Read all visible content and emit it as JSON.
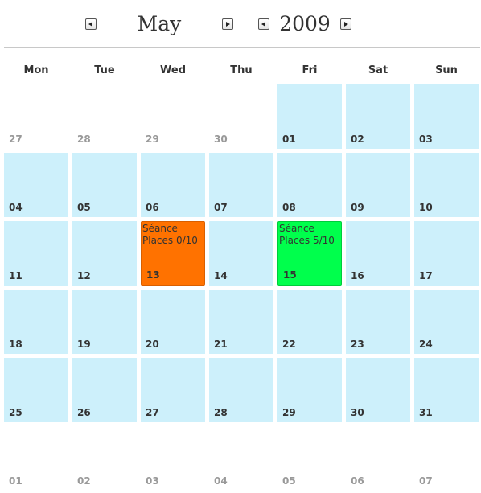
{
  "header": {
    "month": "May",
    "year": "2009"
  },
  "weekdays": [
    "Mon",
    "Tue",
    "Wed",
    "Thu",
    "Fri",
    "Sat",
    "Sun"
  ],
  "weeks": [
    [
      {
        "day": "27",
        "in_month": false
      },
      {
        "day": "28",
        "in_month": false
      },
      {
        "day": "29",
        "in_month": false
      },
      {
        "day": "30",
        "in_month": false
      },
      {
        "day": "01",
        "in_month": true
      },
      {
        "day": "02",
        "in_month": true
      },
      {
        "day": "03",
        "in_month": true
      }
    ],
    [
      {
        "day": "04",
        "in_month": true
      },
      {
        "day": "05",
        "in_month": true
      },
      {
        "day": "06",
        "in_month": true
      },
      {
        "day": "07",
        "in_month": true
      },
      {
        "day": "08",
        "in_month": true
      },
      {
        "day": "09",
        "in_month": true
      },
      {
        "day": "10",
        "in_month": true
      }
    ],
    [
      {
        "day": "11",
        "in_month": true
      },
      {
        "day": "12",
        "in_month": true
      },
      {
        "day": "13",
        "in_month": true,
        "event": {
          "title": "Séance",
          "places": "Places 0/10",
          "color": "#ff7200"
        }
      },
      {
        "day": "14",
        "in_month": true
      },
      {
        "day": "15",
        "in_month": true,
        "event": {
          "title": "Séance",
          "places": "Places 5/10",
          "color": "#00ff4c"
        }
      },
      {
        "day": "16",
        "in_month": true
      },
      {
        "day": "17",
        "in_month": true
      }
    ],
    [
      {
        "day": "18",
        "in_month": true
      },
      {
        "day": "19",
        "in_month": true
      },
      {
        "day": "20",
        "in_month": true
      },
      {
        "day": "21",
        "in_month": true
      },
      {
        "day": "22",
        "in_month": true
      },
      {
        "day": "23",
        "in_month": true
      },
      {
        "day": "24",
        "in_month": true
      }
    ],
    [
      {
        "day": "25",
        "in_month": true
      },
      {
        "day": "26",
        "in_month": true
      },
      {
        "day": "27",
        "in_month": true
      },
      {
        "day": "28",
        "in_month": true
      },
      {
        "day": "29",
        "in_month": true
      },
      {
        "day": "30",
        "in_month": true
      },
      {
        "day": "31",
        "in_month": true
      }
    ],
    [
      {
        "day": "01",
        "in_month": false
      },
      {
        "day": "02",
        "in_month": false
      },
      {
        "day": "03",
        "in_month": false
      },
      {
        "day": "04",
        "in_month": false
      },
      {
        "day": "05",
        "in_month": false
      },
      {
        "day": "06",
        "in_month": false
      },
      {
        "day": "07",
        "in_month": false
      }
    ]
  ],
  "colors": {
    "cell_bg": "#cdf0fb",
    "event_full": "#ff7200",
    "event_available": "#00ff4c"
  }
}
